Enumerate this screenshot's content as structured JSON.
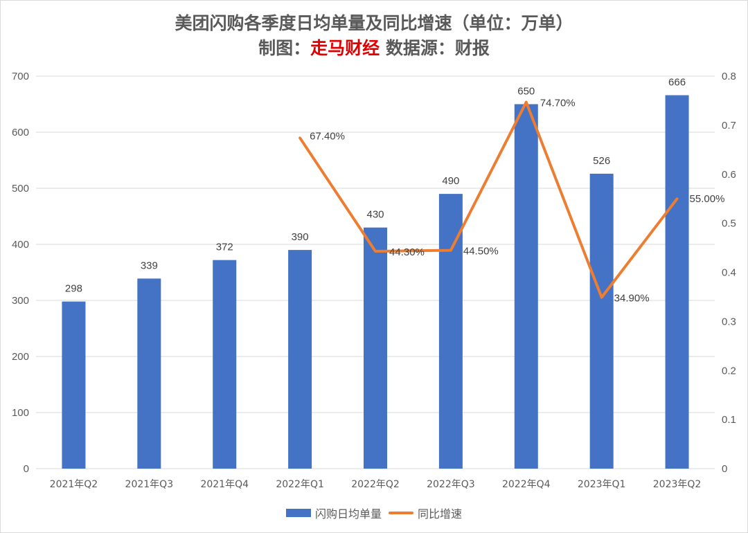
{
  "title_line1": "美团闪购各季度日均单量及同比增速（单位：万单）",
  "title_line2_prefix": "制图：",
  "title_line2_brand": "走马财经",
  "title_line2_suffix": " 数据源：财报",
  "colors": {
    "bar": "#4472c4",
    "line": "#ed7d31",
    "grid": "#d9d9d9",
    "brand": "#e00000"
  },
  "chart_data": {
    "type": "bar",
    "categories": [
      "2021年Q2",
      "2021年Q3",
      "2021年Q4",
      "2022年Q1",
      "2022年Q2",
      "2022年Q3",
      "2022年Q4",
      "2023年Q1",
      "2023年Q2"
    ],
    "series": [
      {
        "name": "闪购日均单量",
        "type": "bar",
        "axis": "left",
        "values": [
          298,
          339,
          372,
          390,
          430,
          490,
          650,
          526,
          666
        ],
        "labels": [
          "298",
          "339",
          "372",
          "390",
          "430",
          "490",
          "650",
          "526",
          "666"
        ]
      },
      {
        "name": "同比增速",
        "type": "line",
        "axis": "right",
        "values": [
          null,
          null,
          null,
          0.674,
          0.443,
          0.445,
          0.747,
          0.349,
          0.55
        ],
        "labels": [
          null,
          null,
          null,
          "67.40%",
          "44.30%",
          "44.50%",
          "74.70%",
          "34.90%",
          "55.00%"
        ]
      }
    ],
    "ylim": [
      0,
      700
    ],
    "yticks": [
      "0",
      "100",
      "200",
      "300",
      "400",
      "500",
      "600",
      "700"
    ],
    "y2lim": [
      0,
      0.8
    ],
    "y2ticks": [
      "0",
      "0.1",
      "0.2",
      "0.3",
      "0.4",
      "0.5",
      "0.6",
      "0.7",
      "0.8"
    ],
    "grid": true,
    "legend_position": "bottom"
  }
}
